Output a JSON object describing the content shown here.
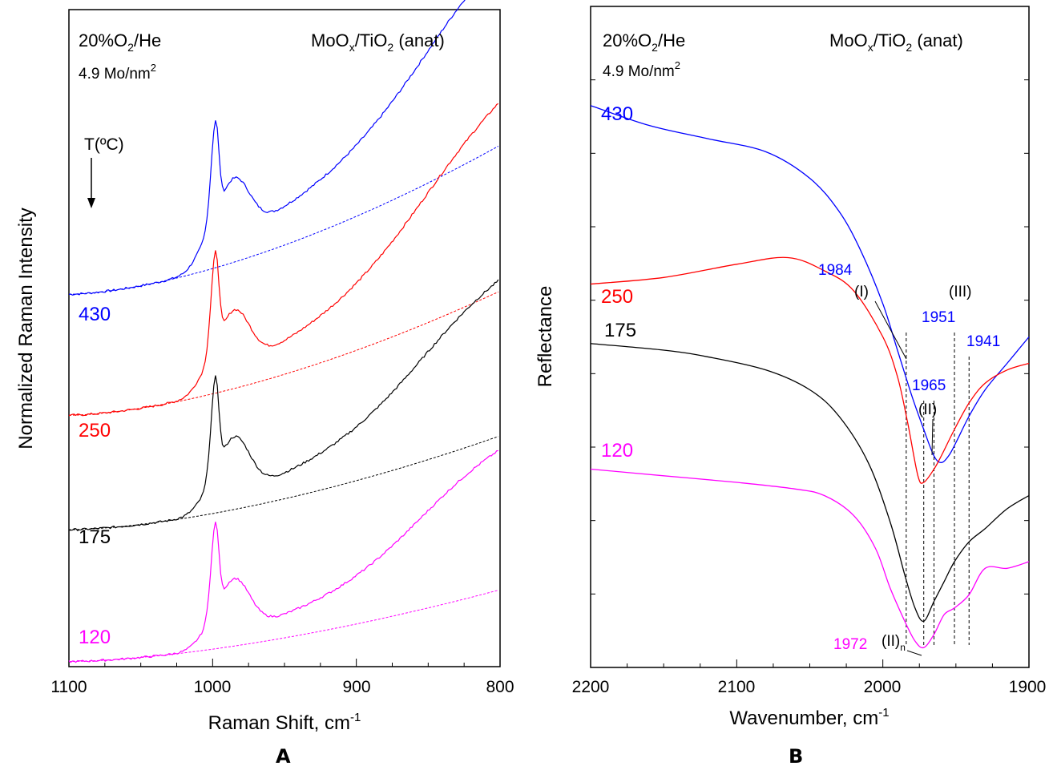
{
  "chart_data": [
    {
      "panel_label": "A",
      "type": "line",
      "xlabel": "Raman Shift, cm",
      "xlabel_sup": "-1",
      "ylabel": "Normalized Raman Intensity",
      "xlim": [
        1100,
        800
      ],
      "x_ticks": [
        "1100",
        "1000",
        "900",
        "800"
      ],
      "condition": {
        "base": "20%O",
        "sub": "2",
        "rest": "/He"
      },
      "loading": {
        "text": "4.9  Mo/nm",
        "sup": "2"
      },
      "sample": {
        "a": "MoO",
        "sub1": "x",
        "b": "/TiO",
        "sub2": "2",
        "c": " (anat)"
      },
      "temperature_label": "T(ºC)",
      "series": [
        {
          "name": "430",
          "color": "#0000ff",
          "offset": 0.55,
          "scale": 0.28,
          "baseline_start": 0.02,
          "baseline_end": 0.29,
          "plateau_left": 0.05,
          "plateau_right": 0.29
        },
        {
          "name": "250",
          "color": "#ff0000",
          "offset": 0.37,
          "scale": 0.28,
          "baseline_start": 0.015,
          "baseline_end": 0.24,
          "plateau_left": 0.04,
          "plateau_right": 0.29
        },
        {
          "name": "175",
          "color": "#000000",
          "offset": 0.2,
          "scale": 0.28,
          "baseline_start": 0.01,
          "baseline_end": 0.18,
          "plateau_left": 0.03,
          "plateau_right": 0.23
        },
        {
          "name": "120",
          "color": "#ff00ff",
          "offset": 0.0,
          "scale": 0.26,
          "baseline_start": 0.01,
          "baseline_end": 0.15,
          "plateau_left": 0.03,
          "plateau_right": 0.22
        }
      ]
    },
    {
      "panel_label": "B",
      "type": "line",
      "xlabel": "Wavenumber, cm",
      "xlabel_sup": "-1",
      "ylabel": "Reflectance",
      "xlim": [
        2200,
        1900
      ],
      "x_ticks": [
        "2200",
        "2100",
        "2000",
        "1900"
      ],
      "condition": {
        "base": "20%O",
        "sub": "2",
        "rest": "/He"
      },
      "loading": {
        "text": "4.9 Mo/nm",
        "sup": "2"
      },
      "sample": {
        "a": "MoO",
        "sub1": "x",
        "b": "/TiO",
        "sub2": "2",
        "c": " (anat)"
      },
      "series": [
        {
          "name": "430",
          "color": "#0000ff",
          "points": [
            [
              2200,
              0.85
            ],
            [
              2160,
              0.82
            ],
            [
              2120,
              0.8
            ],
            [
              2080,
              0.78
            ],
            [
              2050,
              0.74
            ],
            [
              2030,
              0.69
            ],
            [
              2015,
              0.63
            ],
            [
              2000,
              0.55
            ],
            [
              1990,
              0.48
            ],
            [
              1980,
              0.41
            ],
            [
              1972,
              0.36
            ],
            [
              1965,
              0.32
            ],
            [
              1960,
              0.31
            ],
            [
              1955,
              0.32
            ],
            [
              1950,
              0.34
            ],
            [
              1941,
              0.38
            ],
            [
              1930,
              0.42
            ],
            [
              1915,
              0.46
            ],
            [
              1900,
              0.5
            ]
          ]
        },
        {
          "name": "250",
          "color": "#ff0000",
          "points": [
            [
              2200,
              0.58
            ],
            [
              2150,
              0.59
            ],
            [
              2100,
              0.61
            ],
            [
              2065,
              0.62
            ],
            [
              2040,
              0.6
            ],
            [
              2020,
              0.57
            ],
            [
              2000,
              0.5
            ],
            [
              1990,
              0.44
            ],
            [
              1983,
              0.37
            ],
            [
              1976,
              0.29
            ],
            [
              1972,
              0.28
            ],
            [
              1965,
              0.3
            ],
            [
              1960,
              0.32
            ],
            [
              1951,
              0.36
            ],
            [
              1941,
              0.4
            ],
            [
              1930,
              0.43
            ],
            [
              1915,
              0.45
            ],
            [
              1900,
              0.46
            ]
          ]
        },
        {
          "name": "175",
          "color": "#000000",
          "points": [
            [
              2200,
              0.49
            ],
            [
              2150,
              0.48
            ],
            [
              2120,
              0.47
            ],
            [
              2080,
              0.45
            ],
            [
              2050,
              0.42
            ],
            [
              2030,
              0.38
            ],
            [
              2010,
              0.31
            ],
            [
              1995,
              0.22
            ],
            [
              1985,
              0.14
            ],
            [
              1978,
              0.09
            ],
            [
              1972,
              0.07
            ],
            [
              1965,
              0.1
            ],
            [
              1958,
              0.13
            ],
            [
              1951,
              0.16
            ],
            [
              1941,
              0.19
            ],
            [
              1930,
              0.21
            ],
            [
              1915,
              0.24
            ],
            [
              1900,
              0.26
            ]
          ]
        },
        {
          "name": "120",
          "color": "#ff00ff",
          "points": [
            [
              2200,
              0.3
            ],
            [
              2150,
              0.29
            ],
            [
              2100,
              0.28
            ],
            [
              2060,
              0.27
            ],
            [
              2040,
              0.26
            ],
            [
              2020,
              0.23
            ],
            [
              2005,
              0.18
            ],
            [
              1995,
              0.12
            ],
            [
              1985,
              0.07
            ],
            [
              1978,
              0.04
            ],
            [
              1972,
              0.03
            ],
            [
              1965,
              0.05
            ],
            [
              1958,
              0.08
            ],
            [
              1951,
              0.09
            ],
            [
              1941,
              0.11
            ],
            [
              1930,
              0.15
            ],
            [
              1915,
              0.15
            ],
            [
              1900,
              0.16
            ]
          ]
        }
      ],
      "dashed_lines": [
        1984,
        1972,
        1965,
        1951,
        1941
      ],
      "annotations": {
        "peak_1984": "1984",
        "peak_1951": "1951",
        "peak_1941": "1941",
        "peak_1965": "1965",
        "peak_1972": "1972",
        "band_I": "(I)",
        "band_II": "(II)",
        "band_III": "(III)",
        "band_IIn": "(II)",
        "band_IIn_sub": "n"
      },
      "annotation_colors": {
        "blue": "#0000ff",
        "magenta": "#ff00ff",
        "black": "#000000"
      }
    }
  ]
}
